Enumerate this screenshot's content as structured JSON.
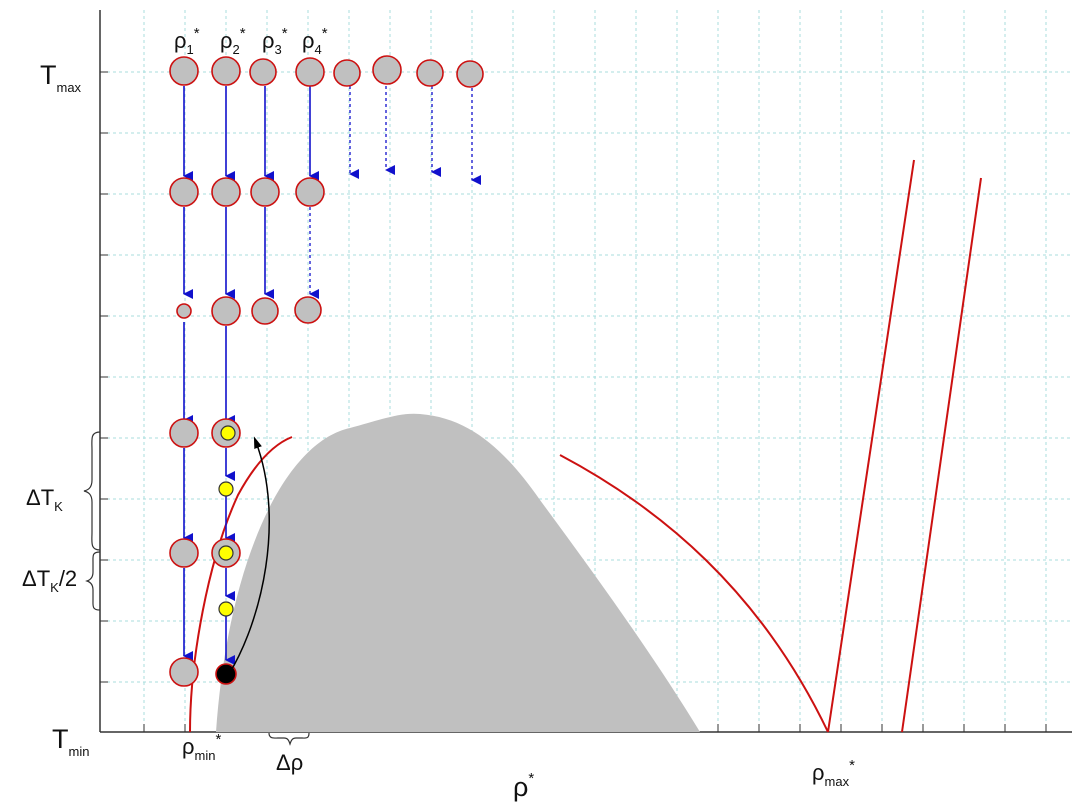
{
  "axis": {
    "t_max": {
      "main": "T",
      "sub": "max"
    },
    "t_min": {
      "main": "T",
      "sub": "min"
    },
    "x_label": {
      "main": "ρ",
      "sup": "*"
    }
  },
  "columns": [
    {
      "main": "ρ",
      "sub": "1",
      "sup": "*"
    },
    {
      "main": "ρ",
      "sub": "2",
      "sup": "*"
    },
    {
      "main": "ρ",
      "sub": "3",
      "sup": "*"
    },
    {
      "main": "ρ",
      "sub": "4",
      "sup": "*"
    }
  ],
  "markers": {
    "rho_min": {
      "main": "ρ",
      "sub": "min",
      "sup": "*"
    },
    "rho_max": {
      "main": "ρ",
      "sub": "max",
      "sup": "*"
    },
    "delta_rho": "Δρ"
  },
  "braces": {
    "delta_tk": {
      "main": "ΔT",
      "sub": "K",
      "tail": ""
    },
    "delta_tk_half": {
      "main": "ΔT",
      "sub": "K",
      "tail": "/2"
    }
  },
  "colors": {
    "grid": "#a8dede",
    "node_fill": "#c0c0c0",
    "node_stroke": "#cc1111",
    "arrow": "#1111cc",
    "curve": "#cc1111",
    "region": "#c0c0c0",
    "yellow": "#ffff00",
    "black_dot": "#000000"
  }
}
